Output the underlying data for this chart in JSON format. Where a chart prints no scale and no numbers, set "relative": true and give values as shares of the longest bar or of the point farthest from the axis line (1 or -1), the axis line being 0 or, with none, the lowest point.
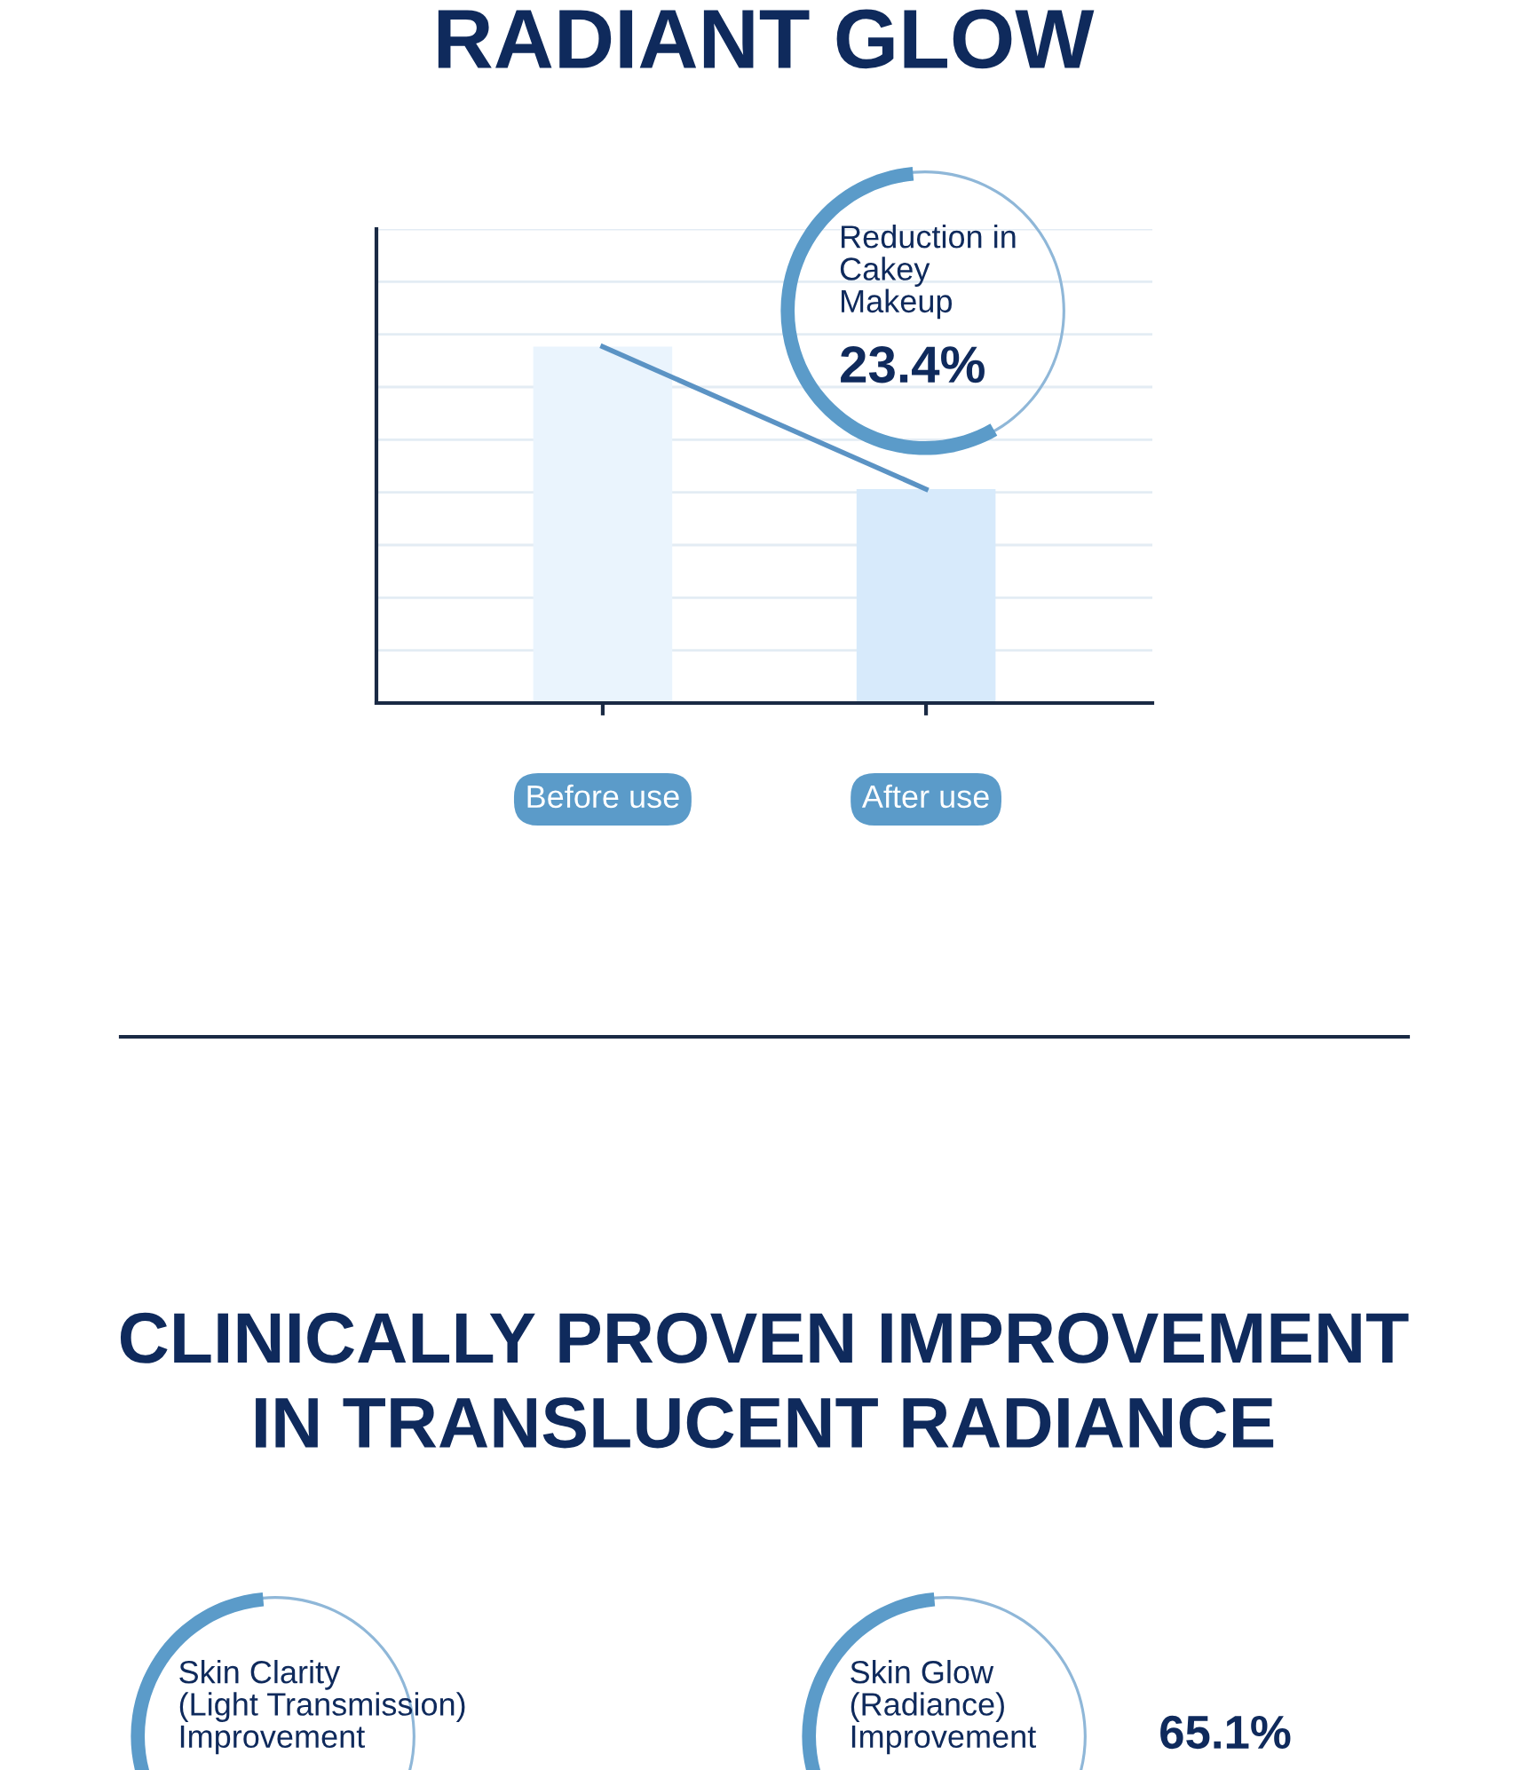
{
  "chart_data": [
    {
      "type": "bar",
      "title": "RADIANT GLOW",
      "relative": true,
      "grid": "y",
      "categories": [
        "Before use",
        "After use"
      ],
      "series": [
        {
          "type": "bar",
          "colors": [
            "#eaf4fd",
            "#d7eafb"
          ],
          "values": [
            1,
            0.6
          ]
        },
        {
          "type": "line",
          "color": "#5b93c4",
          "values": [
            1,
            0.6
          ]
        }
      ],
      "annotations": [
        "Reduction in\nCakey\nMakeup",
        "23.4%"
      ]
    },
    {
      "type": "other",
      "title": "CLINICALLY PROVEN IMPROVEMENT\nIN TRANSLUCENT RADIANCE",
      "annotations": [
        "Skin Clarity\n(Light Transmission)\nImprovement"
      ]
    },
    {
      "type": "other",
      "annotations": [
        "Skin Glow\n(Radiance)\nImprovement",
        "65.1%"
      ]
    }
  ]
}
